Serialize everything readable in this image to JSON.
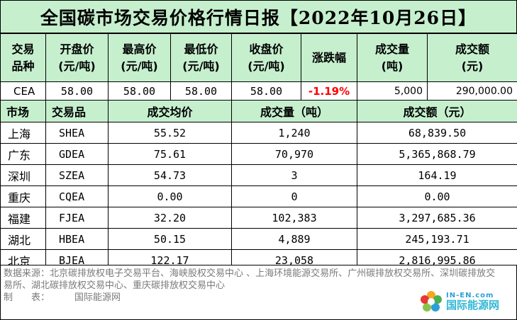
{
  "title": "全国碳市场交易价格行情日报【2022年10月26日】",
  "summary": {
    "headers": [
      "交易品种",
      "开盘价(元/吨)",
      "最高价(元/吨)",
      "最低价(元/吨)",
      "收盘价(元/吨)",
      "涨跌幅",
      "成交量(吨)",
      "成交额(元)"
    ],
    "header_lines": [
      [
        "交易",
        "品种"
      ],
      [
        "开盘价",
        "(元/吨)"
      ],
      [
        "最高价",
        "(元/吨)"
      ],
      [
        "最低价",
        "(元/吨)"
      ],
      [
        "收盘价",
        "(元/吨)"
      ],
      [
        "涨跌幅",
        ""
      ],
      [
        "成交量",
        "(吨)"
      ],
      [
        "成交额",
        "(元)"
      ]
    ],
    "row": {
      "product": "CEA",
      "open": "58.00",
      "high": "58.00",
      "low": "58.00",
      "close": "58.00",
      "change": "-1.19%",
      "volume": "5,000",
      "amount": "290,000.00"
    },
    "change_color": "#ff0000"
  },
  "market": {
    "headers": {
      "market": "市场",
      "product": "交易品",
      "avg_price": "成交均价",
      "volume": "成交量（吨）",
      "amount": "成交额（元）"
    },
    "rows": [
      {
        "market": "上海",
        "code": "SHEA",
        "avg": "55.52",
        "volume": "1,240",
        "amount": "68,839.50"
      },
      {
        "market": "广东",
        "code": "GDEA",
        "avg": "75.61",
        "volume": "70,970",
        "amount": "5,365,868.79"
      },
      {
        "market": "深圳",
        "code": "SZEA",
        "avg": "54.73",
        "volume": "3",
        "amount": "164.19"
      },
      {
        "market": "重庆",
        "code": "CQEA",
        "avg": "0.00",
        "volume": "0",
        "amount": "0.00"
      },
      {
        "market": "福建",
        "code": "FJEA",
        "avg": "32.20",
        "volume": "102,383",
        "amount": "3,297,685.36"
      },
      {
        "market": "湖北",
        "code": "HBEA",
        "avg": "50.15",
        "volume": "4,889",
        "amount": "245,193.71"
      },
      {
        "market": "北京",
        "code": "BJEA",
        "avg": "122.17",
        "volume": "23,058",
        "amount": "2,816,995.86"
      }
    ]
  },
  "footer": {
    "source": "数据来源：北京碳排放权电子交易平台、海峡股权交易中心 、上海环境能源交易所、广州碳排放权交易所、深圳碳排放交易所、湖北碳排放权交易中心、重庆碳排放权交易中心",
    "maker_label": "制　　表：",
    "maker": "国际能源网"
  },
  "logo": {
    "site": "IN-EN.com",
    "name": "国际能源网",
    "icon": "flower-logo-icon"
  },
  "colors": {
    "header_bg": "#c6efce",
    "footer_text": "#7a7a7a"
  }
}
